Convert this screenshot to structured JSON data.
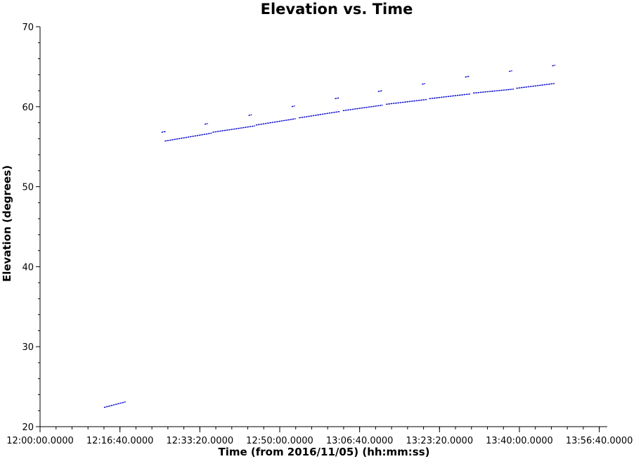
{
  "chart_data": {
    "type": "scatter",
    "title": "Elevation vs. Time",
    "xlabel": "Time (from 2016/11/05) (hh:mm:ss)",
    "ylabel": "Elevation (degrees)",
    "xlim": [
      "12:00:00",
      "13:58:20"
    ],
    "ylim": [
      20,
      70
    ],
    "x_ticks": [
      "12:00:00.0000",
      "12:16:40.0000",
      "12:33:20.0000",
      "12:50:00.0000",
      "13:06:40.0000",
      "13:23:20.0000",
      "13:40:00.0000",
      "13:56:40.0000"
    ],
    "y_ticks": [
      "20",
      "30",
      "40",
      "50",
      "60",
      "70"
    ],
    "grid": false,
    "marker_color": "#0000cc",
    "series": [
      {
        "segments": [
          {
            "x": [
              "12:13:20",
              "12:17:50"
            ],
            "y": [
              22.4,
              23.1
            ]
          },
          {
            "x": [
              "12:25:20",
              "12:26:10"
            ],
            "y": [
              56.8,
              56.9
            ]
          },
          {
            "x": [
              "12:26:00",
              "12:35:50"
            ],
            "y": [
              55.7,
              56.7
            ]
          },
          {
            "x": [
              "12:34:20",
              "12:35:00"
            ],
            "y": [
              57.8,
              57.9
            ]
          },
          {
            "x": [
              "12:36:00",
              "12:44:50"
            ],
            "y": [
              56.8,
              57.6
            ]
          },
          {
            "x": [
              "12:43:30",
              "12:44:10"
            ],
            "y": [
              58.9,
              59.0
            ]
          },
          {
            "x": [
              "12:45:00",
              "12:53:20"
            ],
            "y": [
              57.7,
              58.5
            ]
          },
          {
            "x": [
              "12:52:30",
              "12:53:10"
            ],
            "y": [
              60.0,
              60.1
            ]
          },
          {
            "x": [
              "12:54:00",
              "13:02:30"
            ],
            "y": [
              58.6,
              59.4
            ]
          },
          {
            "x": [
              "13:01:30",
              "13:02:20"
            ],
            "y": [
              61.0,
              61.1
            ]
          },
          {
            "x": [
              "13:03:10",
              "13:11:30"
            ],
            "y": [
              59.5,
              60.2
            ]
          },
          {
            "x": [
              "13:10:30",
              "13:11:20"
            ],
            "y": [
              61.9,
              62.0
            ]
          },
          {
            "x": [
              "13:12:10",
              "13:20:40"
            ],
            "y": [
              60.3,
              60.9
            ]
          },
          {
            "x": [
              "13:19:40",
              "13:20:20"
            ],
            "y": [
              62.8,
              62.9
            ]
          },
          {
            "x": [
              "13:21:10",
              "13:29:50"
            ],
            "y": [
              61.0,
              61.6
            ]
          },
          {
            "x": [
              "13:28:40",
              "13:29:30"
            ],
            "y": [
              63.7,
              63.8
            ]
          },
          {
            "x": [
              "13:30:20",
              "13:38:50"
            ],
            "y": [
              61.7,
              62.2
            ]
          },
          {
            "x": [
              "13:37:50",
              "13:38:30"
            ],
            "y": [
              64.4,
              64.5
            ]
          },
          {
            "x": [
              "13:39:20",
              "13:47:20"
            ],
            "y": [
              62.3,
              62.9
            ]
          },
          {
            "x": [
              "13:46:50",
              "13:47:30"
            ],
            "y": [
              65.1,
              65.2
            ]
          }
        ]
      }
    ]
  }
}
